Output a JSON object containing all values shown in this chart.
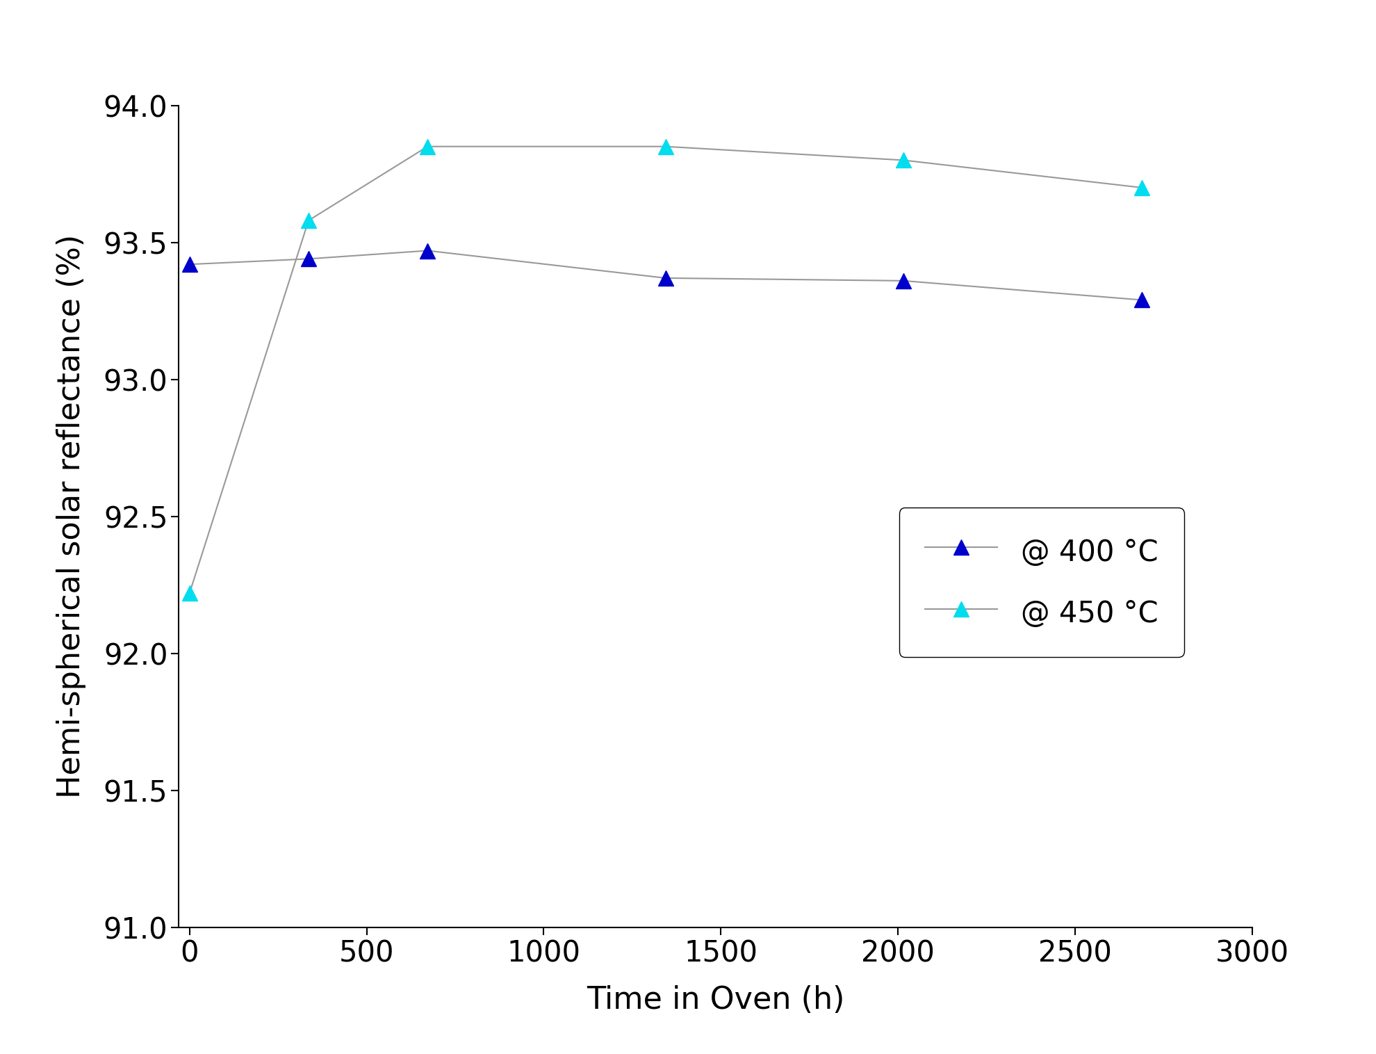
{
  "series_400": {
    "x": [
      0,
      336,
      672,
      1344,
      2016,
      2688
    ],
    "y": [
      93.42,
      93.44,
      93.47,
      93.37,
      93.36,
      93.29
    ],
    "color": "#0000CC",
    "label": "@ 400 °C",
    "marker": "^",
    "markersize": 16
  },
  "series_450": {
    "x": [
      0,
      336,
      672,
      1344,
      2016,
      2688
    ],
    "y": [
      92.22,
      93.58,
      93.85,
      93.85,
      93.8,
      93.7
    ],
    "color": "#00DDEE",
    "label": "@ 450 °C",
    "marker": "^",
    "markersize": 16
  },
  "xlabel": "Time in Oven (h)",
  "ylabel": "Hemi-spherical solar reflectance (%)",
  "xlim": [
    -30,
    3000
  ],
  "ylim": [
    91.0,
    94.0
  ],
  "yticks": [
    91.0,
    91.5,
    92.0,
    92.5,
    93.0,
    93.5,
    94.0
  ],
  "xticks": [
    0,
    500,
    1000,
    1500,
    2000,
    2500,
    3000
  ],
  "line_color": "#999999",
  "line_width": 1.5,
  "background_color": "#ffffff",
  "xlabel_fontsize": 32,
  "ylabel_fontsize": 32,
  "tick_fontsize": 30,
  "legend_fontsize": 30
}
